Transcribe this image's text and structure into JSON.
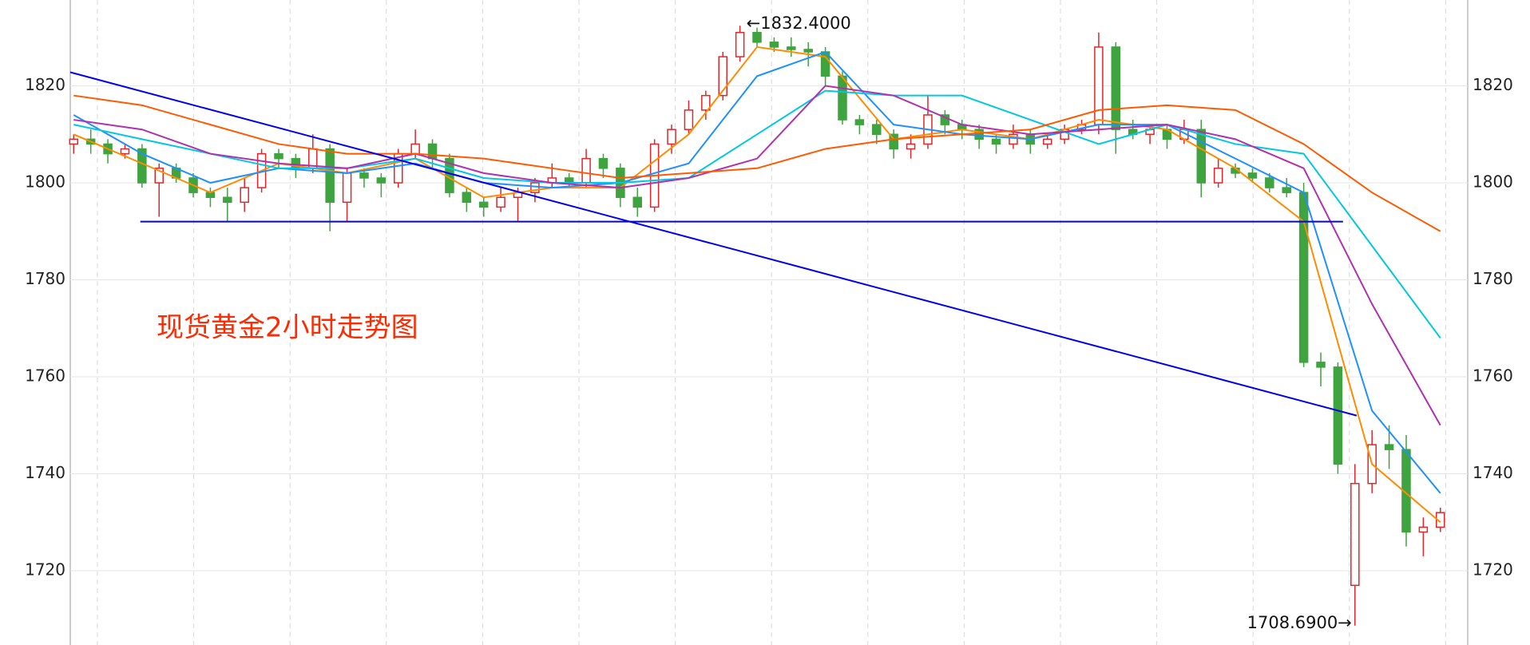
{
  "chart_data": {
    "type": "candlestick",
    "title": "现货黄金2小时走势图",
    "title_color": "#ff2a00",
    "up_color": "#e0262a",
    "down_color": "#3fa33f",
    "xlim": [
      -0.2,
      81.6
    ],
    "ylim": [
      1704.7,
      1837.7
    ],
    "yticks": [
      1720,
      1740,
      1760,
      1780,
      1800,
      1820
    ],
    "grid": true,
    "ohlc": [
      [
        1808,
        1810,
        1806,
        1809
      ],
      [
        1809,
        1811,
        1806,
        1808
      ],
      [
        1808,
        1809,
        1804,
        1806
      ],
      [
        1806,
        1808,
        1805,
        1807
      ],
      [
        1807,
        1808,
        1799,
        1800
      ],
      [
        1800,
        1804,
        1793,
        1803
      ],
      [
        1803,
        1804,
        1800,
        1801
      ],
      [
        1801,
        1802,
        1797,
        1798
      ],
      [
        1798,
        1799,
        1795,
        1797
      ],
      [
        1797,
        1799,
        1792,
        1796
      ],
      [
        1796,
        1801,
        1794,
        1799
      ],
      [
        1799,
        1807,
        1798,
        1806
      ],
      [
        1806,
        1807,
        1803,
        1805
      ],
      [
        1805,
        1806,
        1801,
        1803
      ],
      [
        1803,
        1810,
        1802,
        1807
      ],
      [
        1807,
        1808,
        1790,
        1796
      ],
      [
        1796,
        1803,
        1792,
        1802
      ],
      [
        1802,
        1803,
        1799,
        1801
      ],
      [
        1801,
        1802,
        1797,
        1800
      ],
      [
        1800,
        1807,
        1799,
        1806
      ],
      [
        1806,
        1811,
        1805,
        1808
      ],
      [
        1808,
        1809,
        1803,
        1805
      ],
      [
        1805,
        1806,
        1797,
        1798
      ],
      [
        1798,
        1799,
        1794,
        1796
      ],
      [
        1796,
        1797,
        1793,
        1795
      ],
      [
        1795,
        1799,
        1794,
        1797
      ],
      [
        1797,
        1799,
        1792,
        1798
      ],
      [
        1798,
        1801,
        1796,
        1800
      ],
      [
        1800,
        1804,
        1799,
        1801
      ],
      [
        1801,
        1802,
        1799,
        1800
      ],
      [
        1800,
        1807,
        1799,
        1805
      ],
      [
        1805,
        1806,
        1801,
        1803
      ],
      [
        1803,
        1804,
        1795,
        1797
      ],
      [
        1797,
        1799,
        1793,
        1795
      ],
      [
        1795,
        1809,
        1794,
        1808
      ],
      [
        1808,
        1812,
        1806,
        1811
      ],
      [
        1811,
        1817,
        1810,
        1815
      ],
      [
        1815,
        1819,
        1813,
        1818
      ],
      [
        1818,
        1827,
        1817,
        1826
      ],
      [
        1826,
        1832.4,
        1825,
        1831
      ],
      [
        1831,
        1832,
        1828,
        1829
      ],
      [
        1829,
        1830,
        1827,
        1828
      ],
      [
        1828,
        1830,
        1826,
        1827.5
      ],
      [
        1827.5,
        1829,
        1824,
        1827
      ],
      [
        1827,
        1828,
        1820,
        1822
      ],
      [
        1822,
        1823,
        1812,
        1813
      ],
      [
        1813,
        1814,
        1810,
        1812
      ],
      [
        1812,
        1813,
        1808,
        1810
      ],
      [
        1810,
        1811,
        1805,
        1807
      ],
      [
        1807,
        1810,
        1805,
        1808
      ],
      [
        1808,
        1818,
        1807,
        1814
      ],
      [
        1814,
        1815,
        1810,
        1812
      ],
      [
        1812,
        1813,
        1809,
        1811
      ],
      [
        1811,
        1812,
        1807,
        1809
      ],
      [
        1809,
        1810,
        1806,
        1808
      ],
      [
        1808,
        1812,
        1807,
        1810
      ],
      [
        1810,
        1811,
        1806,
        1808
      ],
      [
        1808,
        1810,
        1807,
        1809
      ],
      [
        1809,
        1812,
        1808,
        1811
      ],
      [
        1811,
        1813,
        1810,
        1812
      ],
      [
        1812,
        1831,
        1810,
        1828
      ],
      [
        1828,
        1829,
        1806,
        1811
      ],
      [
        1811,
        1813,
        1809,
        1810
      ],
      [
        1810,
        1812,
        1808,
        1811
      ],
      [
        1811,
        1812,
        1807,
        1809
      ],
      [
        1809,
        1813,
        1808,
        1811
      ],
      [
        1811,
        1813,
        1797,
        1800
      ],
      [
        1800,
        1805,
        1799,
        1803
      ],
      [
        1803,
        1804,
        1801,
        1802
      ],
      [
        1802,
        1803,
        1800,
        1801
      ],
      [
        1801,
        1802,
        1798,
        1799
      ],
      [
        1799,
        1801,
        1797,
        1798
      ],
      [
        1798,
        1800,
        1762,
        1763
      ],
      [
        1763,
        1765,
        1758,
        1762
      ],
      [
        1762,
        1763,
        1740,
        1742
      ],
      [
        1717,
        1742,
        1708.69,
        1738
      ],
      [
        1738,
        1749,
        1736,
        1746
      ],
      [
        1746,
        1750,
        1741,
        1745
      ],
      [
        1745,
        1748,
        1725,
        1728
      ],
      [
        1728,
        1731,
        1723,
        1729
      ],
      [
        1729,
        1733,
        1728,
        1732
      ]
    ],
    "ma_x": [
      0,
      4,
      8,
      12,
      16,
      20,
      24,
      28,
      32,
      36,
      40,
      44,
      48,
      52,
      56,
      60,
      64,
      68,
      72,
      76,
      80
    ],
    "series": [
      {
        "color": "#ff8c00",
        "values": [
          1810,
          1804,
          1798,
          1804,
          1802,
          1805,
          1797,
          1799,
          1799,
          1810,
          1828,
          1826,
          1809,
          1811,
          1809,
          1813,
          1811,
          1803,
          1792,
          1742,
          1730
        ]
      },
      {
        "color": "#1e90ff",
        "values": [
          1814,
          1806,
          1800,
          1803,
          1802,
          1804,
          1800,
          1799,
          1800,
          1804,
          1822,
          1827,
          1812,
          1810,
          1809,
          1812,
          1812,
          1805,
          1798,
          1753,
          1736
        ]
      },
      {
        "color": "#00c8e0",
        "values": [
          1812,
          1809,
          1806,
          1803,
          1803,
          1805,
          1801,
          1800,
          1800,
          1801,
          1810,
          1819,
          1818,
          1818,
          1813,
          1808,
          1812,
          1808,
          1806,
          1787,
          1768
        ]
      },
      {
        "color": "#b030b0",
        "values": [
          1813,
          1811,
          1806,
          1804,
          1803,
          1806,
          1802,
          1800,
          1799,
          1801,
          1805,
          1820,
          1818,
          1812,
          1810,
          1811,
          1812,
          1809,
          1803,
          1775,
          1750
        ]
      },
      {
        "color": "#ff5a00",
        "values": [
          1818,
          1816,
          1812,
          1808,
          1806,
          1806,
          1805,
          1803,
          1801,
          1802,
          1803,
          1807,
          1809,
          1810,
          1811,
          1815,
          1816,
          1815,
          1808,
          1798,
          1790
        ]
      }
    ],
    "trendlines": [
      {
        "color": "#0000ee",
        "x": [
          -0.2,
          75.1
        ],
        "values": [
          1822.8,
          1752
        ]
      },
      {
        "color": "#0000ee",
        "x": [
          3.9,
          74.3
        ],
        "values": [
          1792,
          1792
        ]
      }
    ],
    "annotations": [
      {
        "text": "←1832.4000",
        "candle": 39
      },
      {
        "text": "1708.6900→",
        "candle": 75
      }
    ]
  }
}
